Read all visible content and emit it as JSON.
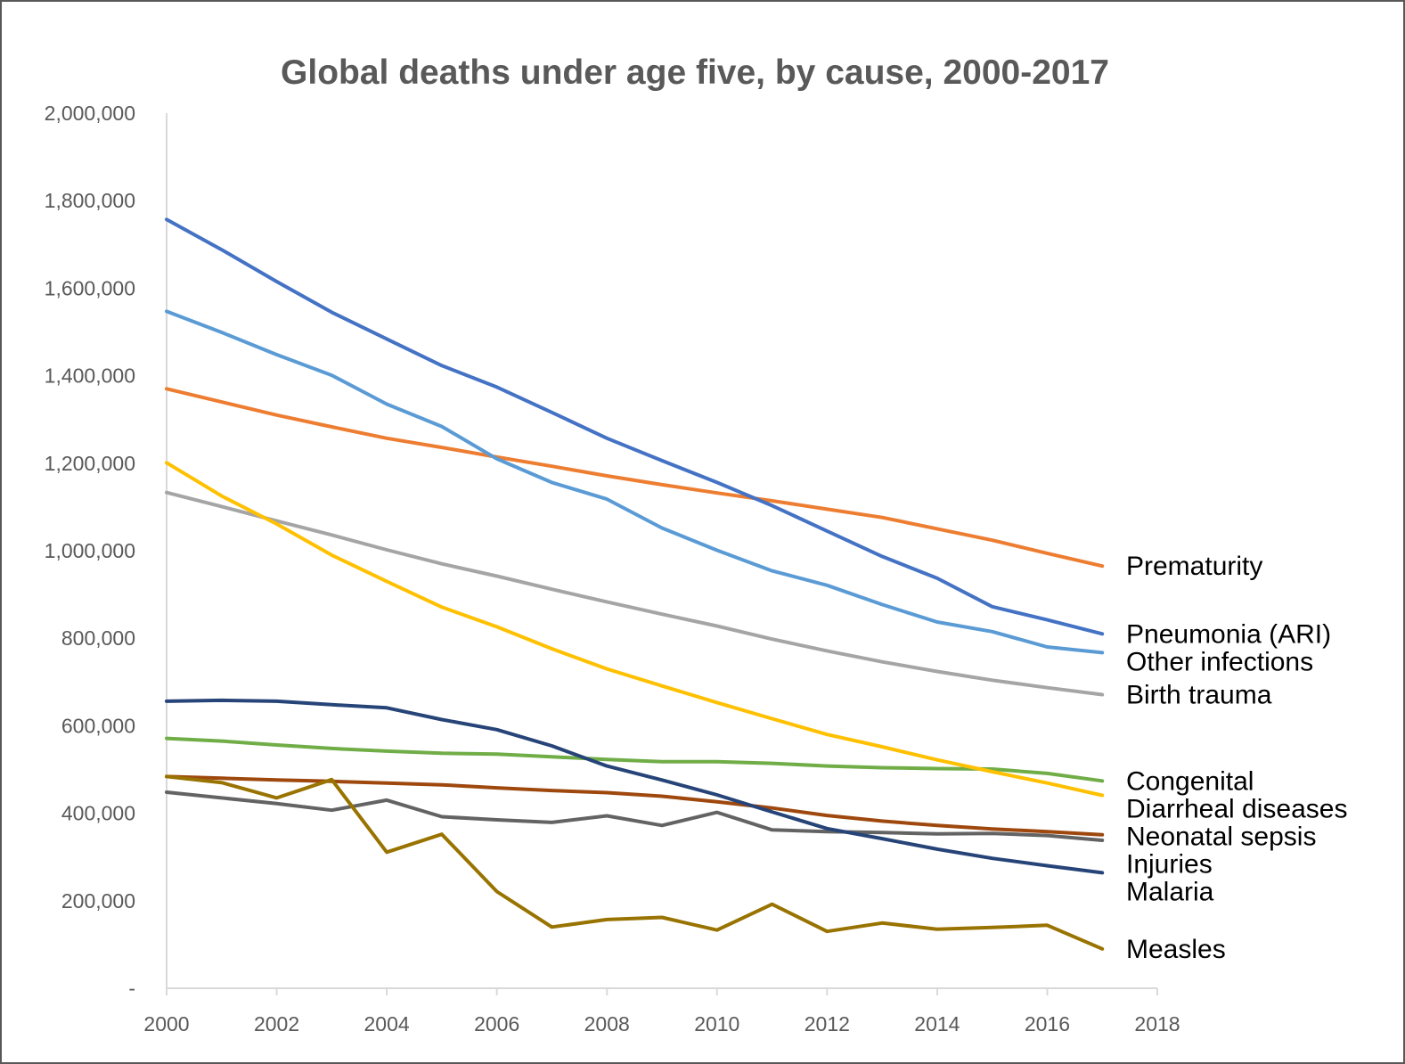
{
  "chart_data": {
    "type": "line",
    "title": "Global deaths under age five, by cause, 2000-2017",
    "xlabel": "",
    "ylabel": "",
    "xlim": [
      2000,
      2018
    ],
    "ylim": [
      0,
      2000000
    ],
    "x_ticks": [
      "2000",
      "2002",
      "2004",
      "2006",
      "2008",
      "2010",
      "2012",
      "2014",
      "2016",
      "2018"
    ],
    "y_ticks": [
      "-",
      "200,000",
      "400,000",
      "600,000",
      "800,000",
      "1,000,000",
      "1,200,000",
      "1,400,000",
      "1,600,000",
      "1,800,000",
      "2,000,000"
    ],
    "grid": false,
    "legend": "none",
    "x": [
      2000,
      2001,
      2002,
      2003,
      2004,
      2005,
      2006,
      2007,
      2008,
      2009,
      2010,
      2011,
      2012,
      2013,
      2014,
      2015,
      2016,
      2017
    ],
    "series": [
      {
        "name": "Prematurity",
        "color": "#ED7D31",
        "values": [
          1370000,
          1340000,
          1310000,
          1283000,
          1257000,
          1236000,
          1214000,
          1193000,
          1171000,
          1151000,
          1132000,
          1114000,
          1095000,
          1076000,
          1050000,
          1024000,
          994000,
          965000
        ]
      },
      {
        "name": "Pneumonia (ARI)",
        "color": "#4472C4",
        "values": [
          1757000,
          1688000,
          1615000,
          1545000,
          1484000,
          1423000,
          1374000,
          1316000,
          1257000,
          1206000,
          1156000,
          1103000,
          1045000,
          987000,
          937000,
          872000,
          842000,
          810000
        ]
      },
      {
        "name": "Other infections",
        "color": "#5B9BD5",
        "values": [
          1547000,
          1499000,
          1448000,
          1401000,
          1335000,
          1284000,
          1210000,
          1156000,
          1118000,
          1052000,
          1001000,
          954000,
          921000,
          877000,
          837000,
          815000,
          780000,
          767000
        ]
      },
      {
        "name": "Birth trauma",
        "color": "#A5A5A5",
        "values": [
          1133000,
          1101000,
          1068000,
          1036000,
          1002000,
          970000,
          942000,
          912000,
          883000,
          855000,
          828000,
          798000,
          771000,
          746000,
          724000,
          704000,
          687000,
          671000
        ]
      },
      {
        "name": "Congenital",
        "color": "#70AD47",
        "values": [
          571000,
          565000,
          556000,
          548000,
          542000,
          537000,
          535000,
          529000,
          523000,
          518000,
          518000,
          514000,
          508000,
          504000,
          502000,
          501000,
          491000,
          474000
        ]
      },
      {
        "name": "Diarrheal diseases",
        "color": "#FFC000",
        "values": [
          1201000,
          1125000,
          1061000,
          990000,
          930000,
          871000,
          826000,
          776000,
          730000,
          691000,
          653000,
          616000,
          580000,
          552000,
          522000,
          495000,
          469000,
          441000
        ]
      },
      {
        "name": "Neonatal sepsis",
        "color": "#9E480E",
        "values": [
          484000,
          480000,
          476000,
          473000,
          469000,
          465000,
          458000,
          452000,
          447000,
          439000,
          426000,
          412000,
          395000,
          382000,
          372000,
          364000,
          358000,
          351000
        ]
      },
      {
        "name": "Injuries",
        "color": "#636363",
        "values": [
          448000,
          435000,
          422000,
          407000,
          430000,
          392000,
          385000,
          379000,
          394000,
          372000,
          402000,
          362000,
          358000,
          356000,
          353000,
          354000,
          349000,
          338000
        ]
      },
      {
        "name": "Malaria",
        "color": "#264478",
        "values": [
          656000,
          658000,
          656000,
          648000,
          641000,
          614000,
          591000,
          554000,
          508000,
          476000,
          442000,
          403000,
          365000,
          342000,
          318000,
          297000,
          280000,
          264000
        ]
      },
      {
        "name": "Measles",
        "color": "#997300",
        "values": [
          484000,
          470000,
          435000,
          477000,
          311000,
          352000,
          221000,
          140000,
          157000,
          162000,
          133000,
          192000,
          130000,
          149000,
          135000,
          139000,
          144000,
          90000
        ]
      }
    ]
  }
}
